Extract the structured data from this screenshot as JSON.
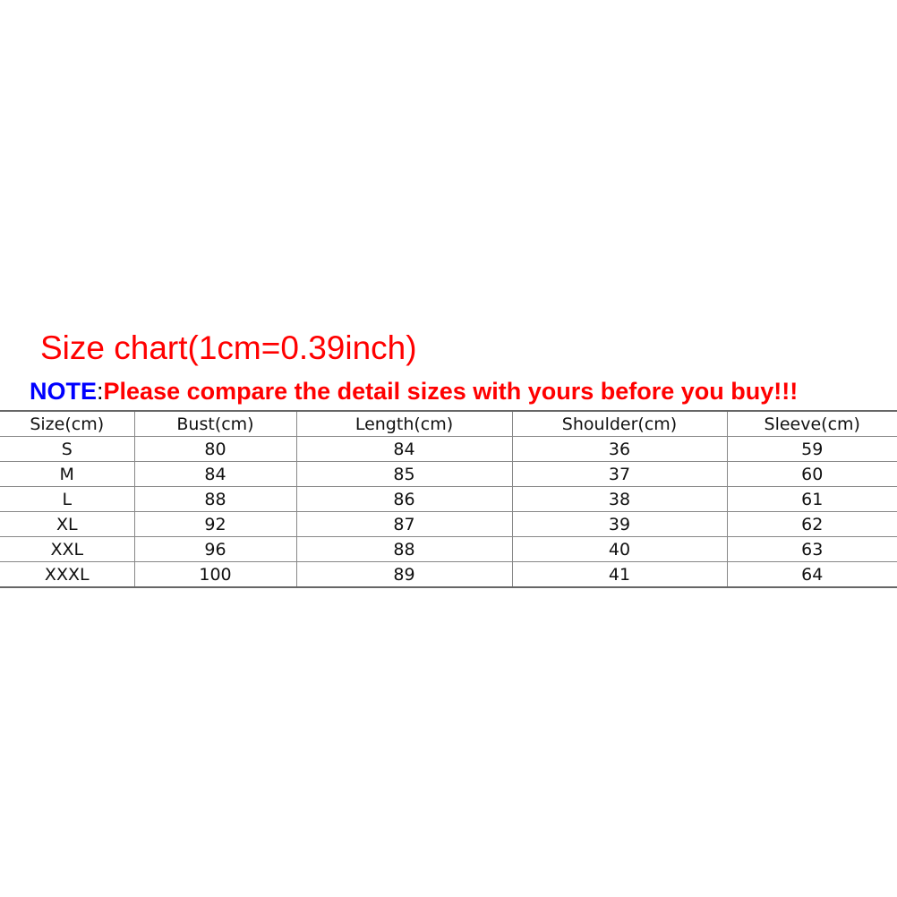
{
  "title": "Size chart(1cm=0.39inch)",
  "note": {
    "label": "NOTE",
    "colon": ":",
    "text": "Please compare the detail sizes with yours before you buy!!!"
  },
  "colors": {
    "title": "#ff0000",
    "note_label": "#0000ff",
    "note_text": "#ff0000"
  },
  "table": {
    "headers": [
      "Size(cm)",
      "Bust(cm)",
      "Length(cm)",
      "Shoulder(cm)",
      "Sleeve(cm)"
    ],
    "rows": [
      [
        "S",
        "80",
        "84",
        "36",
        "59"
      ],
      [
        "M",
        "84",
        "85",
        "37",
        "60"
      ],
      [
        "L",
        "88",
        "86",
        "38",
        "61"
      ],
      [
        "XL",
        "92",
        "87",
        "39",
        "62"
      ],
      [
        "XXL",
        "96",
        "88",
        "40",
        "63"
      ],
      [
        "XXXL",
        "100",
        "89",
        "41",
        "64"
      ]
    ]
  }
}
